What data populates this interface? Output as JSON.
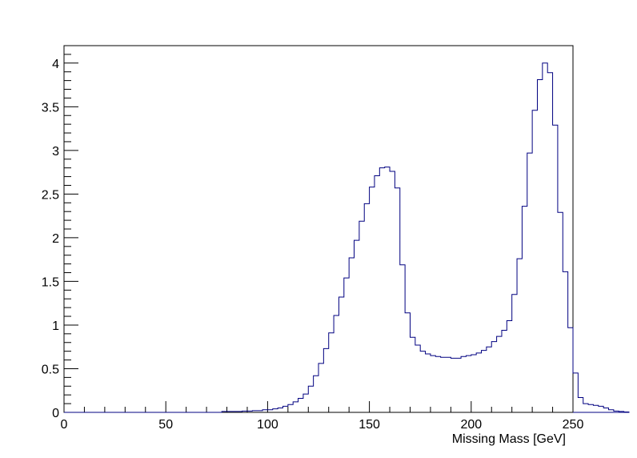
{
  "chart_data": {
    "type": "histogram",
    "title": "",
    "xlabel": "Missing Mass [GeV]",
    "ylabel": "",
    "xlim": [
      0,
      250
    ],
    "ylim": [
      0,
      4.2
    ],
    "bin_width": 2.5,
    "bin_start": 77.5,
    "line_color": "#000080",
    "x_ticks": [
      {
        "value": 0,
        "label": "0"
      },
      {
        "value": 50,
        "label": "50"
      },
      {
        "value": 100,
        "label": "100"
      },
      {
        "value": 150,
        "label": "150"
      },
      {
        "value": 200,
        "label": "200"
      },
      {
        "value": 250,
        "label": "250"
      }
    ],
    "y_ticks": [
      {
        "value": 0,
        "label": "0"
      },
      {
        "value": 0.5,
        "label": "0.5"
      },
      {
        "value": 1,
        "label": "1"
      },
      {
        "value": 1.5,
        "label": "1.5"
      },
      {
        "value": 2,
        "label": "2"
      },
      {
        "value": 2.5,
        "label": "2.5"
      },
      {
        "value": 3,
        "label": "3"
      },
      {
        "value": 3.5,
        "label": "3.5"
      },
      {
        "value": 4,
        "label": "4"
      }
    ],
    "values": [
      0.01,
      0.01,
      0.01,
      0.01,
      0.015,
      0.015,
      0.02,
      0.02,
      0.03,
      0.03,
      0.04,
      0.05,
      0.07,
      0.09,
      0.12,
      0.16,
      0.21,
      0.3,
      0.42,
      0.56,
      0.73,
      0.91,
      1.11,
      1.32,
      1.54,
      1.77,
      1.97,
      2.19,
      2.39,
      2.58,
      2.71,
      2.8,
      2.81,
      2.76,
      2.57,
      1.69,
      1.14,
      0.86,
      0.77,
      0.7,
      0.67,
      0.65,
      0.64,
      0.63,
      0.63,
      0.62,
      0.62,
      0.64,
      0.65,
      0.66,
      0.68,
      0.71,
      0.75,
      0.81,
      0.87,
      0.94,
      1.05,
      1.35,
      1.76,
      2.36,
      2.97,
      3.46,
      3.81,
      4.0,
      3.89,
      3.29,
      2.29,
      1.61,
      0.97,
      0.45,
      0.17,
      0.1,
      0.09,
      0.08,
      0.07,
      0.05,
      0.03,
      0.015,
      0.01,
      0.005
    ]
  }
}
